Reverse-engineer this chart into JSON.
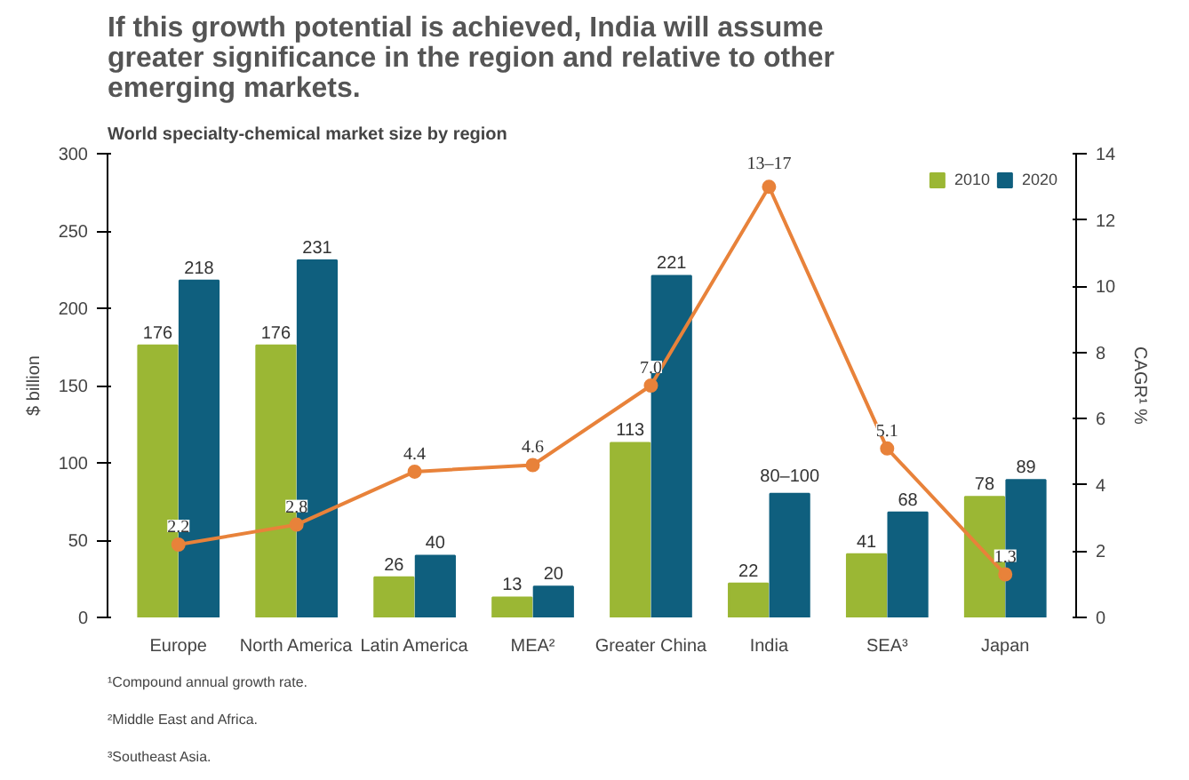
{
  "chart_data": {
    "type": "bar",
    "title": "If this growth potential is achieved, India will assume greater significance in the region and relative to other emerging markets.",
    "subtitle": "World specialty-chemical market size by region",
    "ylabel": "$ billion",
    "y2label": "CAGR¹ %",
    "categories": [
      "Europe",
      "North America",
      "Latin America",
      "MEA²",
      "Greater China",
      "India",
      "SEA³",
      "Japan"
    ],
    "series": [
      {
        "name": "2010",
        "color": "#9bb734",
        "values": [
          176,
          176,
          26,
          13,
          113,
          22,
          41,
          78
        ],
        "value_labels": [
          "176",
          "176",
          "26",
          "13",
          "113",
          "22",
          "41",
          "78"
        ]
      },
      {
        "name": "2020",
        "color": "#0f5f7e",
        "values": [
          218,
          231,
          40,
          20,
          221,
          80,
          68,
          89
        ],
        "value_labels": [
          "218",
          "231",
          "40",
          "20",
          "221",
          "80–100",
          "68",
          "89"
        ]
      },
      {
        "type": "line",
        "axis": "y2",
        "color": "#e8823a",
        "marker": "circle",
        "values": [
          2.2,
          2.8,
          4.4,
          4.6,
          7.0,
          13,
          5.1,
          1.3
        ],
        "value_labels": [
          "2.2",
          "2.8",
          "4.4",
          "4.6",
          "7.0",
          "13–17",
          "5.1",
          "1.3"
        ]
      }
    ],
    "ylim": [
      0,
      300
    ],
    "yticks": [
      0,
      50,
      100,
      150,
      200,
      250,
      300
    ],
    "y2lim": [
      0,
      14
    ],
    "y2ticks": [
      0,
      2,
      4,
      6,
      8,
      10,
      12,
      14
    ],
    "grid": false,
    "legend": "top right",
    "annotations": [
      "¹Compound annual growth rate.",
      "²Middle East and Africa.",
      "³Southeast Asia."
    ]
  }
}
